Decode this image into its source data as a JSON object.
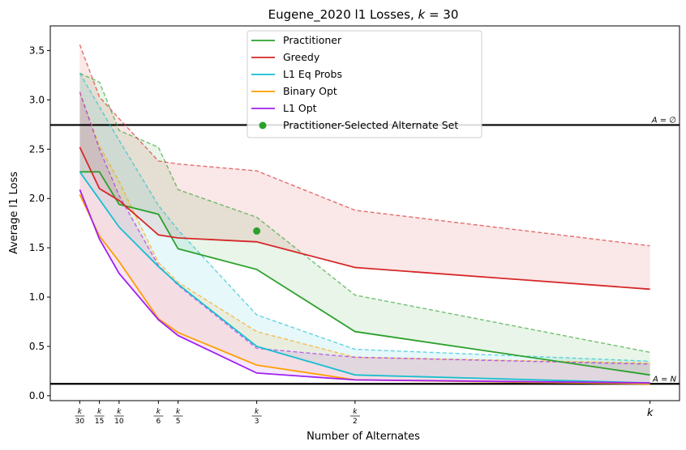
{
  "chart_data": {
    "type": "line",
    "title_prefix": "Eugene_2020 l1 Losses, ",
    "title_k": "k",
    "title_suffix": " = 30",
    "xlabel": "Number of Alternates",
    "ylabel": "Average l1 Loss",
    "ylim": [
      -0.05,
      3.75
    ],
    "yticks": [
      0.0,
      0.5,
      1.0,
      1.5,
      2.0,
      2.5,
      3.0,
      3.5
    ],
    "ytick_labels": [
      "0.0",
      "0.5",
      "1.0",
      "1.5",
      "2.0",
      "2.5",
      "3.0",
      "3.5"
    ],
    "x": [
      1,
      2,
      3,
      5,
      6,
      10,
      15,
      30
    ],
    "xlim": [
      -0.5,
      31.5
    ],
    "xticks": [
      {
        "x": 1,
        "num": "k",
        "den": "30"
      },
      {
        "x": 2,
        "num": "k",
        "den": "15"
      },
      {
        "x": 3,
        "num": "k",
        "den": "10"
      },
      {
        "x": 5,
        "num": "k",
        "den": "6"
      },
      {
        "x": 6,
        "num": "k",
        "den": "5"
      },
      {
        "x": 10,
        "num": "k",
        "den": "3"
      },
      {
        "x": 15,
        "num": "k",
        "den": "2"
      },
      {
        "x": 30,
        "num": "k",
        "den": ""
      }
    ],
    "hlines": [
      {
        "y": 2.745,
        "label": "A = ∅"
      },
      {
        "y": 0.12,
        "label": "A = N"
      }
    ],
    "series": [
      {
        "name": "Practitioner",
        "color": "#2ca02c",
        "values": [
          2.27,
          2.27,
          1.94,
          1.84,
          1.49,
          1.28,
          0.65,
          0.21
        ],
        "upper": [
          3.27,
          3.18,
          2.69,
          2.52,
          2.09,
          1.81,
          1.02,
          0.44
        ],
        "lower": [
          2.27,
          2.27,
          1.94,
          1.84,
          1.49,
          1.28,
          0.65,
          0.21
        ]
      },
      {
        "name": "Greedy",
        "color": "#d62728",
        "values": [
          2.52,
          2.1,
          1.98,
          1.63,
          1.6,
          1.56,
          1.3,
          1.08
        ],
        "upper": [
          3.56,
          3.03,
          2.81,
          2.38,
          2.35,
          2.28,
          1.88,
          1.52
        ],
        "lower": [
          2.52,
          2.1,
          1.98,
          1.63,
          1.6,
          1.56,
          1.3,
          1.08
        ]
      },
      {
        "name": "L1 Eq Probs",
        "color": "#17becf",
        "values": [
          2.27,
          1.99,
          1.71,
          1.31,
          1.13,
          0.5,
          0.21,
          0.13
        ],
        "upper": [
          3.27,
          2.93,
          2.59,
          1.93,
          1.68,
          0.82,
          0.47,
          0.35
        ],
        "lower": [
          2.27,
          1.99,
          1.71,
          1.31,
          1.13,
          0.5,
          0.21,
          0.13
        ]
      },
      {
        "name": "Binary Opt",
        "color": "#ff9f00",
        "values": [
          2.04,
          1.62,
          1.36,
          0.78,
          0.64,
          0.31,
          0.16,
          0.12
        ],
        "upper": [
          3.08,
          2.53,
          2.17,
          1.35,
          1.15,
          0.65,
          0.39,
          0.33
        ],
        "lower": [
          2.04,
          1.62,
          1.36,
          0.78,
          0.64,
          0.31,
          0.16,
          0.12
        ]
      },
      {
        "name": "L1 Opt",
        "color": "#a020f0",
        "values": [
          2.09,
          1.59,
          1.24,
          0.77,
          0.61,
          0.23,
          0.16,
          0.13
        ],
        "upper": [
          3.08,
          2.5,
          2.03,
          1.32,
          1.12,
          0.48,
          0.39,
          0.32
        ],
        "lower": [
          2.09,
          1.59,
          1.24,
          0.77,
          0.61,
          0.23,
          0.16,
          0.13
        ]
      }
    ],
    "scatter": {
      "name": "Practitioner-Selected Alternate Set",
      "color": "#2ca02c",
      "x": 10,
      "y": 1.67
    },
    "legend_position": "top-center"
  }
}
